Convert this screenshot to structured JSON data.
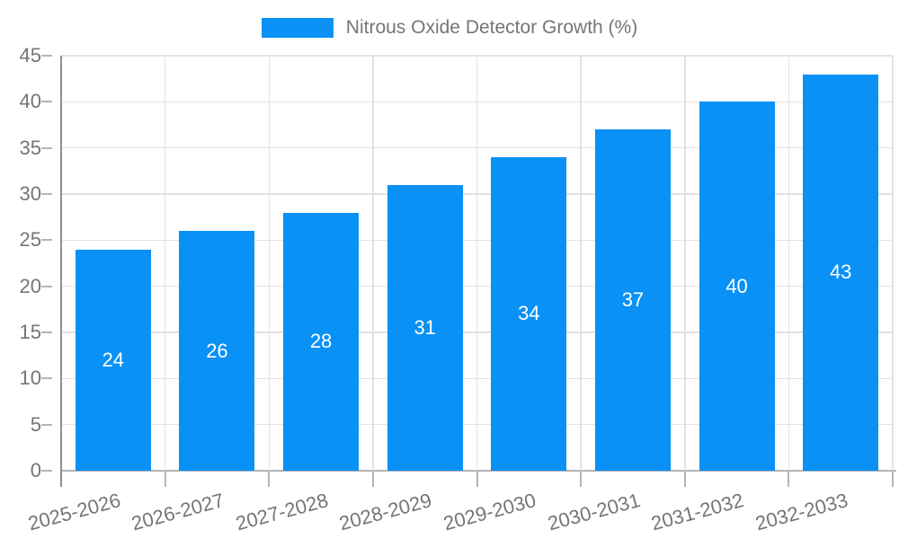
{
  "chart_data": {
    "type": "bar",
    "title": "Nitrous Oxide Detector Growth (%)",
    "categories": [
      "2025-2026",
      "2026-2027",
      "2027-2028",
      "2028-2029",
      "2029-2030",
      "2030-2031",
      "2031-2032",
      "2032-2033"
    ],
    "values": [
      24,
      26,
      28,
      31,
      34,
      37,
      40,
      43
    ],
    "xlabel": "",
    "ylabel": "",
    "ylim": [
      0,
      45
    ],
    "yticks": [
      0,
      5,
      10,
      15,
      20,
      25,
      30,
      35,
      40,
      45
    ],
    "grid": true,
    "legend_position": "top",
    "colors": {
      "bar": "#0991f5",
      "grid_line": "#e2e2e2",
      "y_axis_line": "#8f8f8f",
      "x_axis_line": "#b3b3b3",
      "tick_mark": "#b5b5b5",
      "axis_text": "#757575",
      "value_label": "#ffffff",
      "background": "#ffffff"
    }
  }
}
